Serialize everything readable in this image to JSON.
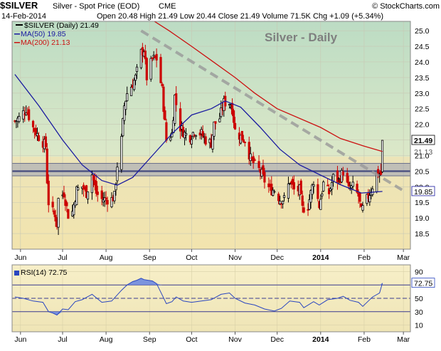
{
  "header": {
    "symbol": "$SILVER",
    "name": "Silver - Spot Price (EOD)",
    "exchange": "CME",
    "watermark": "© StockCharts.com",
    "date": "14-Feb-2014",
    "ohlc": "Open 20.48  High 21.49  Low 20.44  Close 21.49  Volume 71.5K  Chg +1.09 (+5.34%)",
    "chg_arrow": "▲"
  },
  "legend": {
    "main": "$SILVER (Daily) 21.49",
    "ma50": "MA(50) 19.85",
    "ma200": "MA(200) 21.13"
  },
  "chart_title": "Silver - Daily",
  "rsi_legend": "RSI(14) 72.75",
  "colors": {
    "up": "#000000",
    "down": "#cc0000",
    "ma50": "#1a1aa0",
    "ma200": "#cc1111",
    "trendline": "#999999",
    "support": "#4a5080",
    "rsi_line": "#2a46c0",
    "rsi_fill": "#6e8ae0"
  },
  "chart_data": [
    {
      "type": "candlestick",
      "x_labels": [
        "Jun",
        "Jul",
        "Aug",
        "Sep",
        "Oct",
        "Nov",
        "Dec",
        "2014",
        "Feb",
        "Mar"
      ],
      "ylim": [
        18.0,
        25.3
      ],
      "yticks": [
        18.5,
        19.0,
        19.5,
        20.0,
        20.5,
        21.0,
        21.5,
        22.0,
        22.5,
        23.0,
        23.5,
        24.0,
        24.5,
        25.0
      ],
      "price_labels": [
        {
          "text": "21.49",
          "value": 21.49,
          "style": "last"
        },
        {
          "text": "21.13",
          "value": 21.13,
          "style": "ma200"
        },
        {
          "text": "19.85",
          "value": 19.85,
          "style": "ma50"
        }
      ],
      "close_path": [
        {
          "date": "2013-05-28",
          "value": 22.1
        },
        {
          "date": "2013-05-31",
          "value": 22.2
        },
        {
          "date": "2013-06-05",
          "value": 22.5
        },
        {
          "date": "2013-06-10",
          "value": 21.9
        },
        {
          "date": "2013-06-14",
          "value": 21.6
        },
        {
          "date": "2013-06-19",
          "value": 21.3
        },
        {
          "date": "2013-06-20",
          "value": 20.2
        },
        {
          "date": "2013-06-21",
          "value": 19.5
        },
        {
          "date": "2013-06-24",
          "value": 19.2
        },
        {
          "date": "2013-06-26",
          "value": 19.0
        },
        {
          "date": "2013-06-27",
          "value": 18.8
        },
        {
          "date": "2013-06-28",
          "value": 19.6
        },
        {
          "date": "2013-07-02",
          "value": 19.8
        },
        {
          "date": "2013-07-05",
          "value": 19.1
        },
        {
          "date": "2013-07-08",
          "value": 19.2
        },
        {
          "date": "2013-07-11",
          "value": 19.9
        },
        {
          "date": "2013-07-15",
          "value": 20.0
        },
        {
          "date": "2013-07-18",
          "value": 19.8
        },
        {
          "date": "2013-07-22",
          "value": 20.4
        },
        {
          "date": "2013-07-25",
          "value": 19.8
        },
        {
          "date": "2013-07-29",
          "value": 19.6
        },
        {
          "date": "2013-08-01",
          "value": 19.6
        },
        {
          "date": "2013-08-05",
          "value": 19.6
        },
        {
          "date": "2013-08-07",
          "value": 19.7
        },
        {
          "date": "2013-08-09",
          "value": 20.7
        },
        {
          "date": "2013-08-12",
          "value": 21.5
        },
        {
          "date": "2013-08-14",
          "value": 22.6
        },
        {
          "date": "2013-08-16",
          "value": 23.0
        },
        {
          "date": "2013-08-20",
          "value": 23.3
        },
        {
          "date": "2013-08-22",
          "value": 23.5
        },
        {
          "date": "2013-08-26",
          "value": 24.3
        },
        {
          "date": "2013-08-28",
          "value": 24.4
        },
        {
          "date": "2013-08-30",
          "value": 23.5
        },
        {
          "date": "2013-09-03",
          "value": 24.1
        },
        {
          "date": "2013-09-06",
          "value": 24.1
        },
        {
          "date": "2013-09-10",
          "value": 23.1
        },
        {
          "date": "2013-09-13",
          "value": 21.5
        },
        {
          "date": "2013-09-17",
          "value": 21.7
        },
        {
          "date": "2013-09-19",
          "value": 22.9
        },
        {
          "date": "2013-09-23",
          "value": 21.9
        },
        {
          "date": "2013-09-26",
          "value": 21.7
        },
        {
          "date": "2013-09-30",
          "value": 21.6
        },
        {
          "date": "2013-10-03",
          "value": 21.8
        },
        {
          "date": "2013-10-08",
          "value": 21.7
        },
        {
          "date": "2013-10-11",
          "value": 21.5
        },
        {
          "date": "2013-10-15",
          "value": 21.4
        },
        {
          "date": "2013-10-17",
          "value": 22.0
        },
        {
          "date": "2013-10-21",
          "value": 22.2
        },
        {
          "date": "2013-10-24",
          "value": 22.7
        },
        {
          "date": "2013-10-28",
          "value": 22.7
        },
        {
          "date": "2013-10-30",
          "value": 22.5
        },
        {
          "date": "2013-11-01",
          "value": 21.8
        },
        {
          "date": "2013-11-05",
          "value": 21.6
        },
        {
          "date": "2013-11-08",
          "value": 21.5
        },
        {
          "date": "2013-11-12",
          "value": 20.9
        },
        {
          "date": "2013-11-15",
          "value": 20.7
        },
        {
          "date": "2013-11-19",
          "value": 20.5
        },
        {
          "date": "2013-11-22",
          "value": 20.2
        },
        {
          "date": "2013-11-26",
          "value": 19.9
        },
        {
          "date": "2013-11-29",
          "value": 19.9
        },
        {
          "date": "2013-12-03",
          "value": 19.6
        },
        {
          "date": "2013-12-06",
          "value": 19.6
        },
        {
          "date": "2013-12-10",
          "value": 20.2
        },
        {
          "date": "2013-12-13",
          "value": 19.9
        },
        {
          "date": "2013-12-17",
          "value": 19.9
        },
        {
          "date": "2013-12-19",
          "value": 19.3
        },
        {
          "date": "2013-12-23",
          "value": 19.4
        },
        {
          "date": "2013-12-27",
          "value": 20.2
        },
        {
          "date": "2013-12-31",
          "value": 19.4
        },
        {
          "date": "2014-01-03",
          "value": 20.1
        },
        {
          "date": "2014-01-07",
          "value": 19.8
        },
        {
          "date": "2014-01-10",
          "value": 20.3
        },
        {
          "date": "2014-01-14",
          "value": 20.2
        },
        {
          "date": "2014-01-17",
          "value": 20.5
        },
        {
          "date": "2014-01-21",
          "value": 19.9
        },
        {
          "date": "2014-01-24",
          "value": 20.0
        },
        {
          "date": "2014-01-28",
          "value": 19.7
        },
        {
          "date": "2014-01-30",
          "value": 19.2
        },
        {
          "date": "2014-02-03",
          "value": 19.6
        },
        {
          "date": "2014-02-06",
          "value": 19.9
        },
        {
          "date": "2014-02-10",
          "value": 20.4
        },
        {
          "date": "2014-02-13",
          "value": 20.4
        },
        {
          "date": "2014-02-14",
          "value": 21.49
        }
      ],
      "ma50": [
        {
          "date": "2013-05-28",
          "value": 23.6
        },
        {
          "date": "2013-06-14",
          "value": 22.6
        },
        {
          "date": "2013-07-01",
          "value": 21.5
        },
        {
          "date": "2013-07-15",
          "value": 20.7
        },
        {
          "date": "2013-07-29",
          "value": 20.2
        },
        {
          "date": "2013-08-09",
          "value": 20.05
        },
        {
          "date": "2013-08-20",
          "value": 20.3
        },
        {
          "date": "2013-09-03",
          "value": 21.0
        },
        {
          "date": "2013-09-17",
          "value": 21.7
        },
        {
          "date": "2013-10-01",
          "value": 22.3
        },
        {
          "date": "2013-10-15",
          "value": 22.5
        },
        {
          "date": "2013-10-25",
          "value": 22.75
        },
        {
          "date": "2013-11-05",
          "value": 22.55
        },
        {
          "date": "2013-11-19",
          "value": 21.9
        },
        {
          "date": "2013-12-03",
          "value": 21.2
        },
        {
          "date": "2013-12-17",
          "value": 20.7
        },
        {
          "date": "2014-01-02",
          "value": 20.35
        },
        {
          "date": "2014-01-16",
          "value": 20.05
        },
        {
          "date": "2014-01-30",
          "value": 19.8
        },
        {
          "date": "2014-02-14",
          "value": 19.85
        }
      ],
      "ma200": [
        {
          "date": "2013-09-01",
          "value": 25.4
        },
        {
          "date": "2013-09-15",
          "value": 25.0
        },
        {
          "date": "2013-10-01",
          "value": 24.5
        },
        {
          "date": "2013-10-15",
          "value": 24.05
        },
        {
          "date": "2013-11-01",
          "value": 23.5
        },
        {
          "date": "2013-11-15",
          "value": 23.0
        },
        {
          "date": "2013-12-01",
          "value": 22.5
        },
        {
          "date": "2014-01-01",
          "value": 21.9
        },
        {
          "date": "2014-01-15",
          "value": 21.55
        },
        {
          "date": "2014-02-01",
          "value": 21.3
        },
        {
          "date": "2014-02-14",
          "value": 21.13
        }
      ],
      "trendline": [
        {
          "date": "2013-08-26",
          "value": 25.0
        },
        {
          "date": "2014-02-28",
          "value": 19.9
        }
      ],
      "support_zone": [
        20.35,
        20.75
      ],
      "support_line": 20.5
    },
    {
      "type": "line",
      "name": "RSI(14) 72.75",
      "ylim": [
        0,
        100
      ],
      "yticks": [
        10,
        30,
        50,
        70,
        90
      ],
      "levels": [
        70,
        50,
        30
      ],
      "last_label": "72.75",
      "values": [
        {
          "date": "2013-05-28",
          "value": 52
        },
        {
          "date": "2013-06-03",
          "value": 50
        },
        {
          "date": "2013-06-10",
          "value": 46
        },
        {
          "date": "2013-06-17",
          "value": 44
        },
        {
          "date": "2013-06-21",
          "value": 30
        },
        {
          "date": "2013-06-24",
          "value": 28
        },
        {
          "date": "2013-06-27",
          "value": 25
        },
        {
          "date": "2013-07-01",
          "value": 34
        },
        {
          "date": "2013-07-05",
          "value": 33
        },
        {
          "date": "2013-07-10",
          "value": 45
        },
        {
          "date": "2013-07-15",
          "value": 48
        },
        {
          "date": "2013-07-22",
          "value": 56
        },
        {
          "date": "2013-07-29",
          "value": 44
        },
        {
          "date": "2013-08-05",
          "value": 46
        },
        {
          "date": "2013-08-12",
          "value": 62
        },
        {
          "date": "2013-08-16",
          "value": 70
        },
        {
          "date": "2013-08-20",
          "value": 75
        },
        {
          "date": "2013-08-23",
          "value": 77
        },
        {
          "date": "2013-08-26",
          "value": 80
        },
        {
          "date": "2013-08-28",
          "value": 78
        },
        {
          "date": "2013-09-03",
          "value": 76
        },
        {
          "date": "2013-09-06",
          "value": 72
        },
        {
          "date": "2013-09-10",
          "value": 55
        },
        {
          "date": "2013-09-13",
          "value": 42
        },
        {
          "date": "2013-09-17",
          "value": 45
        },
        {
          "date": "2013-09-20",
          "value": 52
        },
        {
          "date": "2013-09-25",
          "value": 46
        },
        {
          "date": "2013-10-01",
          "value": 44
        },
        {
          "date": "2013-10-08",
          "value": 46
        },
        {
          "date": "2013-10-15",
          "value": 48
        },
        {
          "date": "2013-10-22",
          "value": 56
        },
        {
          "date": "2013-10-28",
          "value": 58
        },
        {
          "date": "2013-11-01",
          "value": 50
        },
        {
          "date": "2013-11-08",
          "value": 43
        },
        {
          "date": "2013-11-15",
          "value": 40
        },
        {
          "date": "2013-11-22",
          "value": 34
        },
        {
          "date": "2013-11-29",
          "value": 31
        },
        {
          "date": "2013-12-04",
          "value": 35
        },
        {
          "date": "2013-12-10",
          "value": 46
        },
        {
          "date": "2013-12-17",
          "value": 44
        },
        {
          "date": "2013-12-20",
          "value": 36
        },
        {
          "date": "2013-12-27",
          "value": 45
        },
        {
          "date": "2013-12-31",
          "value": 40
        },
        {
          "date": "2014-01-06",
          "value": 48
        },
        {
          "date": "2014-01-13",
          "value": 50
        },
        {
          "date": "2014-01-17",
          "value": 53
        },
        {
          "date": "2014-01-22",
          "value": 47
        },
        {
          "date": "2014-01-28",
          "value": 44
        },
        {
          "date": "2014-01-31",
          "value": 38
        },
        {
          "date": "2014-02-04",
          "value": 46
        },
        {
          "date": "2014-02-07",
          "value": 52
        },
        {
          "date": "2014-02-12",
          "value": 58
        },
        {
          "date": "2014-02-14",
          "value": 72.75
        }
      ]
    }
  ]
}
